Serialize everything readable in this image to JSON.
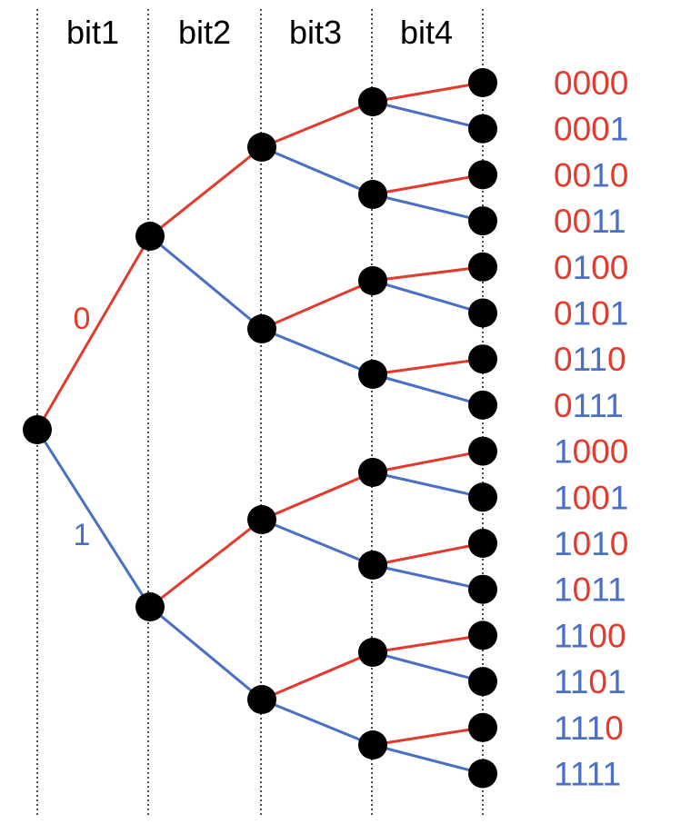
{
  "colors": {
    "zero": "#e23a2e",
    "one": "#4a6fc4",
    "node": "#000000",
    "guide": "#000000"
  },
  "columns": [
    "bit1",
    "bit2",
    "bit3",
    "bit4"
  ],
  "edge_labels": {
    "zero": "0",
    "one": "1"
  },
  "leaf_codes": [
    "0000",
    "0001",
    "0010",
    "0011",
    "0100",
    "0101",
    "0110",
    "0111",
    "1000",
    "1001",
    "1010",
    "1011",
    "1100",
    "1101",
    "1110",
    "1111"
  ]
}
